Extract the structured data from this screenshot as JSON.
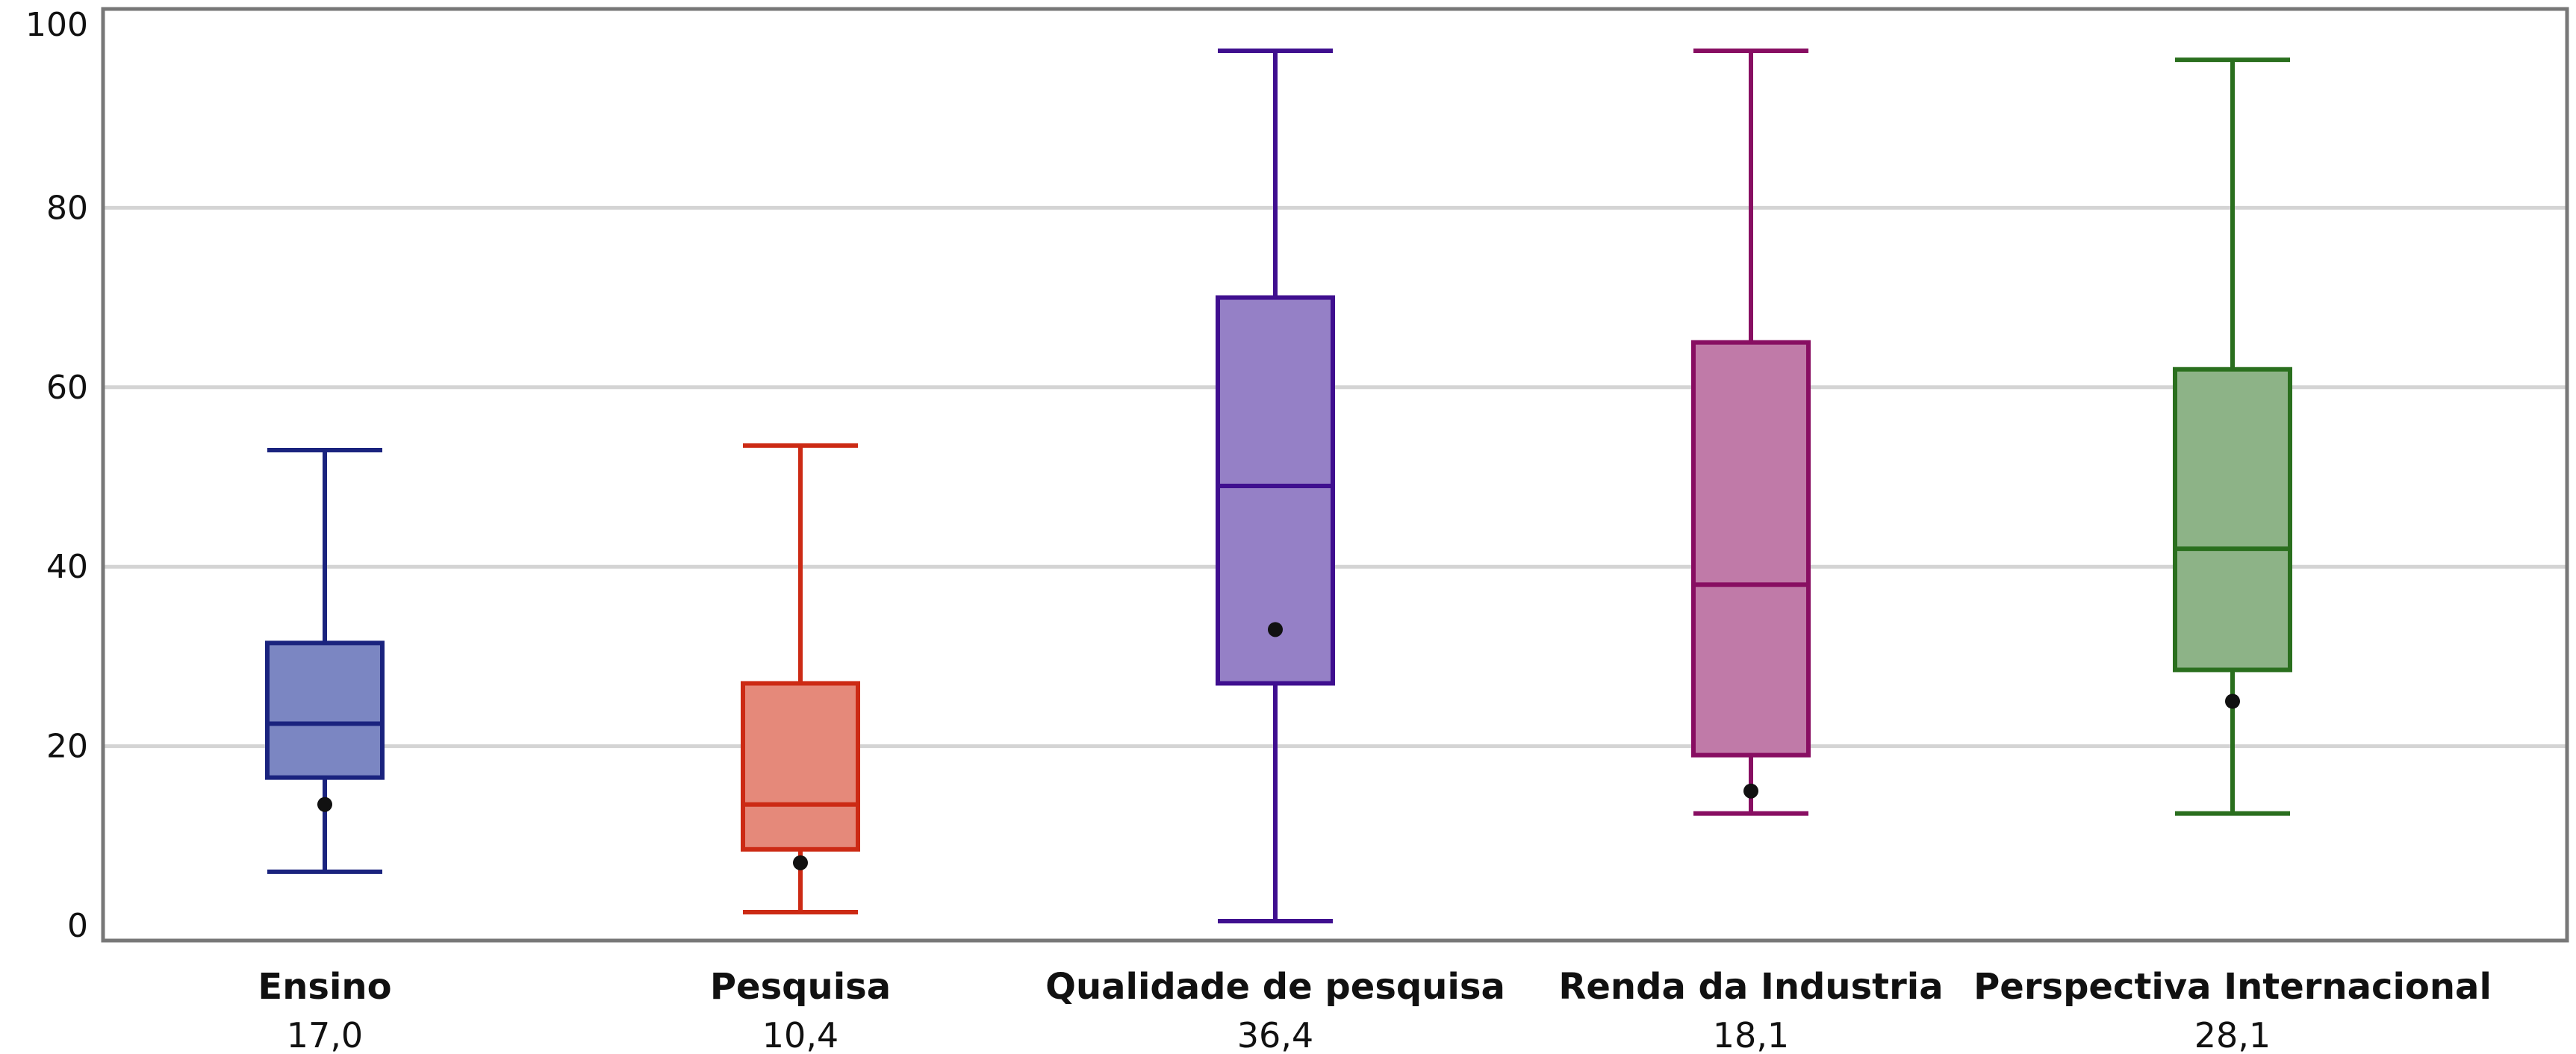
{
  "chart_data": {
    "type": "box",
    "ylim": [
      0,
      100
    ],
    "yticks": [
      0,
      20,
      40,
      60,
      80,
      100
    ],
    "grid": true,
    "categories": [
      {
        "name": "Ensino",
        "value_label": "17,0",
        "color": "#1a237e",
        "fill": "#7b86c2",
        "whisker_low": 6,
        "q1": 16.5,
        "median": 22.5,
        "q3": 31.5,
        "whisker_high": 53,
        "mean": 13.5
      },
      {
        "name": "Pesquisa",
        "value_label": "10,4",
        "color": "#cc2a14",
        "fill": "#e5897a",
        "whisker_low": 1.5,
        "q1": 8.5,
        "median": 13.5,
        "q3": 27,
        "whisker_high": 53.5,
        "mean": 7
      },
      {
        "name": "Qualidade de pesquisa",
        "value_label": "36,4",
        "color": "#3f0f8f",
        "fill": "#9580c6",
        "whisker_low": 0.5,
        "q1": 27,
        "median": 49,
        "q3": 70,
        "whisker_high": 97.5,
        "mean": 33
      },
      {
        "name": "Renda da Industria",
        "value_label": "18,1",
        "color": "#880e62",
        "fill": "#c07aa8",
        "whisker_low": 12.5,
        "q1": 19,
        "median": 38,
        "q3": 65,
        "whisker_high": 97.5,
        "mean": 15
      },
      {
        "name": "Perspectiva  Internacional",
        "value_label": "28,1",
        "color": "#2a6f1e",
        "fill": "#8db387",
        "whisker_low": 12.5,
        "q1": 28.5,
        "median": 42,
        "q3": 62,
        "whisker_high": 96.5,
        "mean": 25
      }
    ]
  }
}
